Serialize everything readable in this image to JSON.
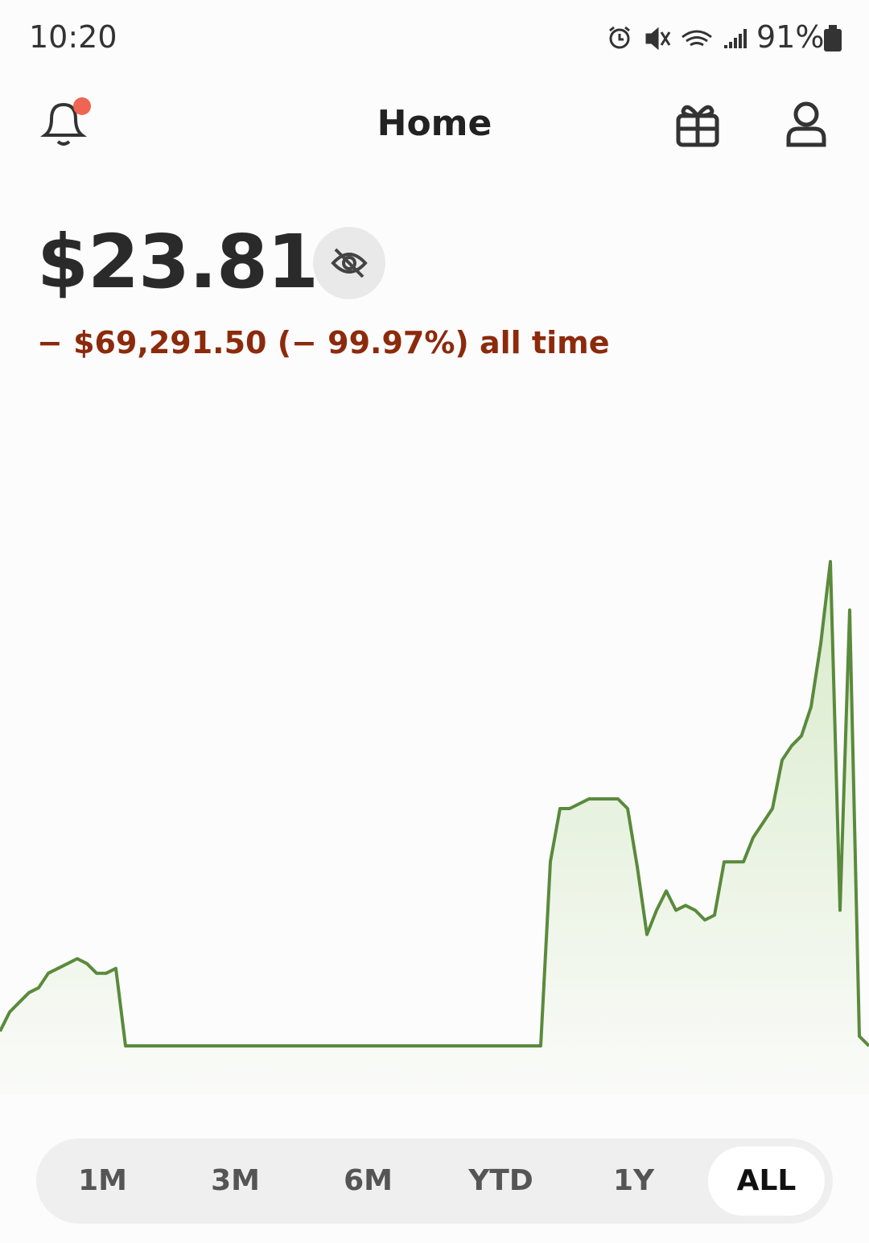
{
  "status_bar": {
    "time": "10:20",
    "battery": "91%"
  },
  "header": {
    "title": "Home"
  },
  "portfolio": {
    "balance": "$23.81",
    "change": "− $69,291.50 (− 99.97%) all time"
  },
  "chart": {
    "type": "line",
    "color": "#5a8a3c",
    "values": [
      3,
      7,
      9,
      11,
      12,
      15,
      16,
      17,
      18,
      17,
      15,
      15,
      16,
      0,
      0,
      0,
      0,
      0,
      0,
      0,
      0,
      0,
      0,
      0,
      0,
      0,
      0,
      0,
      0,
      0,
      0,
      0,
      0,
      0,
      0,
      0,
      0,
      0,
      0,
      0,
      0,
      0,
      0,
      0,
      0,
      0,
      0,
      0,
      0,
      0,
      0,
      0,
      0,
      0,
      0,
      0,
      0,
      38,
      49,
      49,
      50,
      51,
      51,
      51,
      51,
      49,
      37,
      23,
      28,
      32,
      28,
      29,
      28,
      26,
      27,
      38,
      38,
      38,
      43,
      46,
      49,
      59,
      62,
      64,
      70,
      83,
      100,
      28,
      90,
      2,
      0
    ]
  },
  "ranges": {
    "options": [
      "1M",
      "3M",
      "6M",
      "YTD",
      "1Y",
      "ALL"
    ],
    "selected_index": 5
  }
}
